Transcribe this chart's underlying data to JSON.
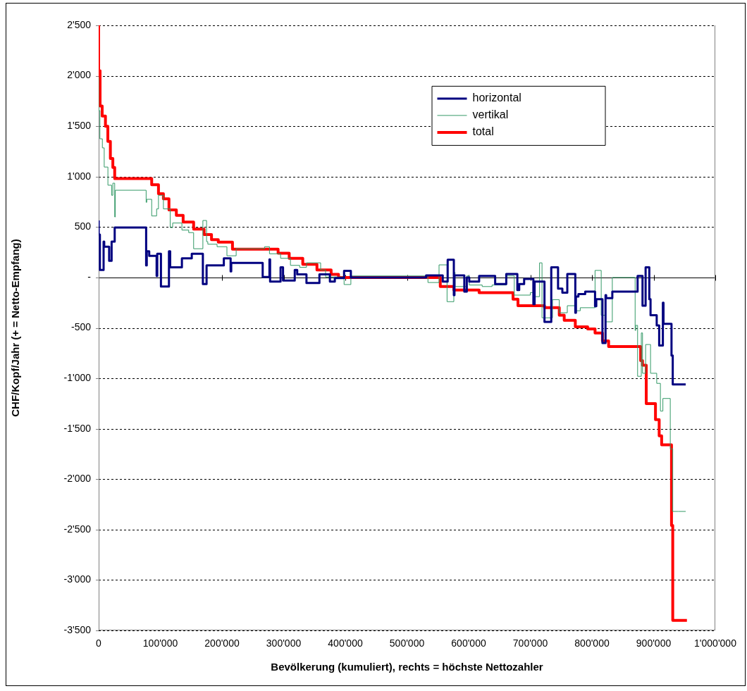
{
  "chart_data": {
    "type": "step",
    "xlabel": "Bevölkerung (kumuliert), rechts = höchste Nettozahler",
    "ylabel": "CHF/Kopf/Jahr (+ = Netto-Empfang)",
    "legend": "top right",
    "grid": "y",
    "xlim": [
      0,
      1000000
    ],
    "ylim": [
      -3500,
      2500
    ],
    "xticks": [
      0,
      {
        "value": 100000,
        "label": "100'000"
      },
      {
        "value": 200000,
        "label": "200'000"
      },
      {
        "value": 300000,
        "label": "300'000"
      },
      {
        "value": 400000,
        "label": "400'000"
      },
      {
        "value": 500000,
        "label": "500'000"
      },
      {
        "value": 600000,
        "label": "600'000"
      },
      {
        "value": 700000,
        "label": "700'000"
      },
      {
        "value": 800000,
        "label": "800'000"
      },
      {
        "value": 900000,
        "label": "900'000"
      },
      {
        "value": 1000000,
        "label": "1'000'000"
      }
    ],
    "yticks": [
      {
        "value": -3500,
        "label": "-3'500"
      },
      {
        "value": -3000,
        "label": "-3'000"
      },
      {
        "value": -2500,
        "label": "-2'500"
      },
      {
        "value": -2000,
        "label": "-2'000"
      },
      {
        "value": -1500,
        "label": "-1'500"
      },
      {
        "value": -1000,
        "label": "-1'000"
      },
      {
        "value": -500,
        "label": "-500"
      },
      {
        "value": 0,
        "label": "-"
      },
      500,
      {
        "value": 1000,
        "label": "1'000"
      },
      {
        "value": 1500,
        "label": "1'500"
      },
      {
        "value": 2000,
        "label": "2'000"
      },
      {
        "value": 2500,
        "label": "2'500"
      }
    ],
    "series": [
      {
        "name": "horizontal",
        "color": "#000080",
        "x": [
          0,
          2000,
          8000,
          9000,
          17000,
          21000,
          26000,
          27000,
          77000,
          78000,
          82000,
          94000,
          95000,
          101000,
          114000,
          116000,
          135000,
          151000,
          169000,
          175000,
          185000,
          203000,
          214000,
          215000,
          226000,
          266000,
          277000,
          278000,
          295000,
          299000,
          318000,
          322000,
          337000,
          358000,
          375000,
          383000,
          398000,
          409000,
          531000,
          558000,
          566000,
          576000,
          577000,
          578000,
          593000,
          597000,
          601000,
          617000,
          643000,
          661000,
          679000,
          682000,
          690000,
          705000,
          707000,
          723000,
          734000,
          745000,
          752000,
          760000,
          773000,
          774000,
          778000,
          789000,
          805000,
          807000,
          817000,
          822000,
          823000,
          833000,
          874000,
          882000,
          887000,
          893000,
          895000,
          905000,
          909000,
          915000,
          916000,
          929000,
          931000,
          940000,
          952000
        ],
        "values": [
          565,
          425,
          75,
          355,
          305,
          165,
          355,
          495,
          495,
          120,
          260,
          215,
          15,
          235,
          -90,
          260,
          100,
          190,
          235,
          -65,
          120,
          120,
          190,
          60,
          145,
          145,
          5,
          180,
          -40,
          100,
          -30,
          75,
          30,
          -55,
          30,
          -40,
          -5,
          65,
          0,
          20,
          -40,
          175,
          -175,
          20,
          20,
          -140,
          0,
          -40,
          15,
          -65,
          35,
          -125,
          -65,
          -15,
          -265,
          -40,
          -440,
          100,
          -110,
          -150,
          35,
          -350,
          -190,
          -165,
          -140,
          -285,
          -215,
          -650,
          -175,
          -205,
          -140,
          15,
          -280,
          100,
          -215,
          -375,
          -475,
          -675,
          -250,
          -460,
          -775,
          -1060,
          -1060
        ]
      },
      {
        "name": "vertikal",
        "color": "#339966",
        "x": [
          0,
          2000,
          6000,
          9000,
          15000,
          21000,
          23000,
          26000,
          27000,
          77000,
          78000,
          86000,
          94000,
          97000,
          105000,
          116000,
          120000,
          135000,
          146000,
          154000,
          169000,
          175000,
          177000,
          192000,
          208000,
          215000,
          223000,
          269000,
          277000,
          295000,
          311000,
          326000,
          337000,
          360000,
          368000,
          398000,
          409000,
          531000,
          534000,
          552000,
          565000,
          576000,
          577000,
          578000,
          597000,
          601000,
          622000,
          638000,
          661000,
          674000,
          700000,
          707000,
          715000,
          719000,
          736000,
          744000,
          747000,
          760000,
          773000,
          781000,
          805000,
          815000,
          822000,
          825000,
          833000,
          870000,
          871000,
          874000,
          880000,
          882000,
          887000,
          893000,
          895000,
          905000,
          911000,
          915000,
          927000,
          931000,
          940000,
          952000
        ],
        "values": [
          1985,
          1655,
          1375,
          1285,
          1095,
          915,
          815,
          935,
          600,
          865,
          745,
          775,
          610,
          680,
          815,
          680,
          495,
          540,
          470,
          445,
          285,
          565,
          355,
          330,
          305,
          215,
          215,
          285,
          305,
          235,
          190,
          120,
          100,
          145,
          75,
          5,
          -70,
          15,
          15,
          -50,
          125,
          -240,
          -125,
          50,
          -90,
          15,
          -75,
          -90,
          -75,
          15,
          -175,
          -150,
          -190,
          145,
          -400,
          -220,
          -220,
          -350,
          -280,
          -330,
          -300,
          70,
          -375,
          -440,
          -440,
          0,
          -525,
          -475,
          -980,
          -550,
          -950,
          -665,
          -665,
          -950,
          -1050,
          -1325,
          -1200,
          -1700,
          -2320,
          -2320
        ]
      },
      {
        "name": "total",
        "color": "#ff0000",
        "x": [
          0,
          2300,
          5700,
          11000,
          14900,
          19000,
          23000,
          26000,
          86000,
          97000,
          105000,
          114000,
          126000,
          137000,
          154000,
          171000,
          183000,
          194000,
          217000,
          291000,
          309000,
          331000,
          354000,
          377000,
          389000,
          400000,
          554000,
          576000,
          617000,
          672000,
          680000,
          723000,
          747000,
          755000,
          773000,
          793000,
          805000,
          817000,
          827000,
          879000,
          882000,
          888000,
          903000,
          909000,
          913000,
          929000,
          931000,
          940000,
          954000
        ],
        "values": [
          2500,
          2050,
          1700,
          1600,
          1500,
          1350,
          1180,
          1090,
          980,
          920,
          830,
          780,
          670,
          615,
          550,
          480,
          425,
          375,
          350,
          280,
          240,
          190,
          130,
          75,
          30,
          0,
          0,
          -90,
          -125,
          -150,
          -215,
          -280,
          -300,
          -375,
          -425,
          -490,
          -510,
          -550,
          -630,
          -685,
          -825,
          -870,
          -1250,
          -1410,
          -1570,
          -1660,
          -2460,
          -3400,
          -3400
        ]
      }
    ]
  }
}
